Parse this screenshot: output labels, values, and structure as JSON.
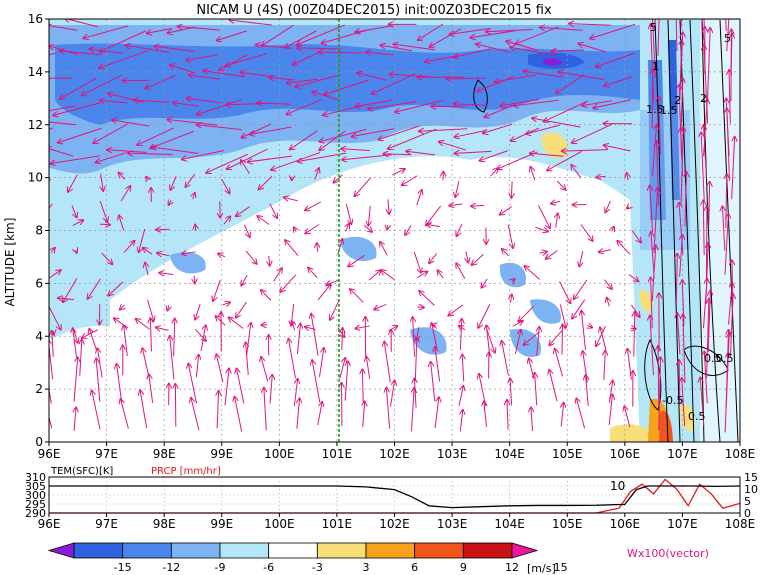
{
  "title": "NICAM U (4S) (00Z04DEC2015) init:00Z03DEC2015 fix",
  "main": {
    "ylabel": "ALTITUDE [km]",
    "xticks": [
      "96E",
      "97E",
      "98E",
      "99E",
      "100E",
      "101E",
      "102E",
      "103E",
      "104E",
      "105E",
      "106E",
      "107E",
      "108E"
    ],
    "yticks": [
      "0",
      "2",
      "4",
      "6",
      "8",
      "10",
      "12",
      "14",
      "16"
    ],
    "contour_labels": [
      "5",
      "1.5",
      "1",
      "2",
      "5",
      "1.5",
      "2",
      "0.5",
      "-0.5",
      "0.5",
      "0.5"
    ]
  },
  "sub": {
    "left_label": "TEM(SFC)[K]",
    "mid_label": "PRCP [mm/hr]",
    "yticks_left": [
      "310",
      "305",
      "300",
      "295",
      "290"
    ],
    "yticks_right": [
      "15",
      "10",
      "5",
      "0"
    ],
    "curve_label": "10",
    "xticks": [
      "96E",
      "97E",
      "98E",
      "99E",
      "100E",
      "101E",
      "102E",
      "103E",
      "104E",
      "105E",
      "106E",
      "107E",
      "108E"
    ]
  },
  "colorbar": {
    "ticks": [
      "-15",
      "-12",
      "-9",
      "-6",
      "-3",
      "3",
      "6",
      "9",
      "12",
      "15"
    ],
    "unit": "[m/s]",
    "vector_note": "Wx100(vector)",
    "colors": [
      "#8a1cd8",
      "#2f62e0",
      "#4a86ec",
      "#7db2f3",
      "#b5e6f8",
      "#ffffff",
      "#f7e07a",
      "#f7a21c",
      "#f2551b",
      "#c81414",
      "#f014a0"
    ]
  },
  "chart_data": [
    {
      "type": "heatmap",
      "title": "NICAM U (4S) (00Z04DEC2015) init:00Z03DEC2015 fix",
      "xlabel": "",
      "ylabel": "ALTITUDE [km]",
      "xlim": [
        96,
        108
      ],
      "ylim": [
        0,
        16
      ],
      "x_tick_labels": [
        "96E",
        "97E",
        "98E",
        "99E",
        "100E",
        "101E",
        "102E",
        "103E",
        "104E",
        "105E",
        "106E",
        "107E",
        "108E"
      ],
      "y_tick_labels": [
        "0",
        "2",
        "4",
        "6",
        "8",
        "10",
        "12",
        "14",
        "16"
      ],
      "marked_longitude": 101,
      "colorbar_unit": "[m/s]",
      "colorbar_levels": [
        -15,
        -12,
        -9,
        -6,
        -3,
        3,
        6,
        9,
        12,
        15
      ]
    },
    {
      "type": "line",
      "series": [
        {
          "name": "TEM(SFC)[K]",
          "color": "#000000",
          "x": [
            96,
            97,
            98,
            99,
            100,
            101,
            101.5,
            102,
            102.3,
            102.6,
            103,
            103.5,
            104,
            104.5,
            105,
            105.5,
            106,
            106.2,
            106.4,
            106.8,
            107.2,
            107.6,
            108
          ],
          "y": [
            305,
            305,
            305,
            305,
            305,
            305,
            304.5,
            303,
            299,
            294,
            293,
            293.5,
            294,
            294.2,
            294.2,
            294.3,
            294.8,
            303,
            305,
            305,
            305,
            304.8,
            305
          ]
        },
        {
          "name": "PRCP [mm/hr]",
          "color": "#e21a1a",
          "x": [
            96,
            97,
            98,
            99,
            100,
            101,
            102,
            103,
            104,
            105,
            105.5,
            105.9,
            106.1,
            106.3,
            106.5,
            106.7,
            106.9,
            107.1,
            107.3,
            107.5,
            107.7,
            108
          ],
          "y": [
            0,
            0,
            0,
            0,
            0,
            0,
            0,
            0,
            0,
            0,
            0,
            2,
            9,
            12,
            8,
            14,
            10,
            3,
            12,
            8,
            2,
            4
          ]
        }
      ],
      "xlim": [
        96,
        108
      ],
      "ylim_left": [
        290,
        310
      ],
      "ylim_right": [
        0,
        15
      ]
    }
  ]
}
